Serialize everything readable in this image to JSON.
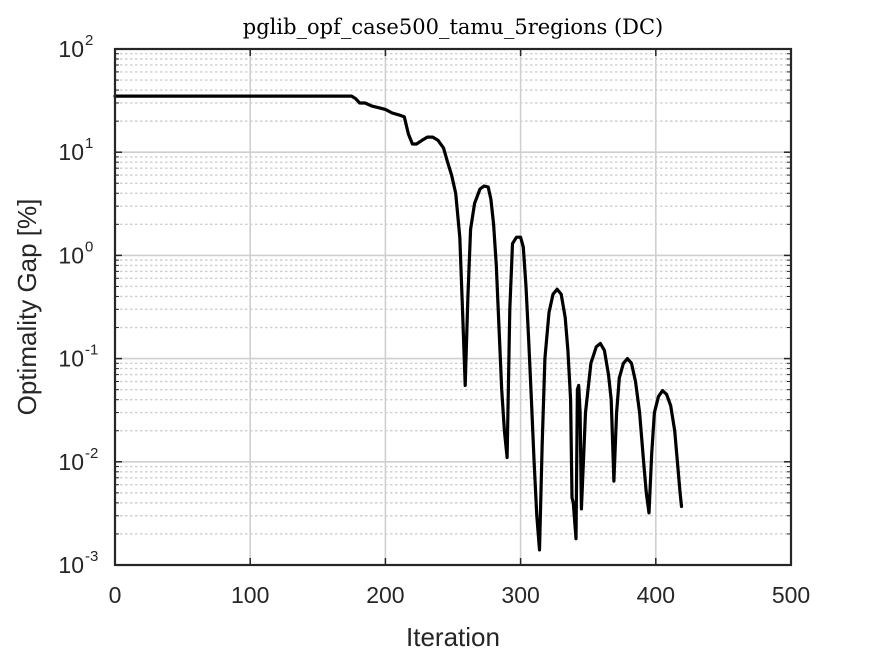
{
  "chart_data": {
    "type": "line",
    "title": "pglib_opf_case500_tamu_5regions (DC)",
    "xlabel": "Iteration",
    "ylabel": "Optimality Gap [%]",
    "xlim": [
      0,
      500
    ],
    "ylim": [
      0.001,
      100
    ],
    "y_scale": "log",
    "grid": true,
    "minor_grid": true,
    "x_ticks": [
      0,
      100,
      200,
      300,
      400,
      500
    ],
    "y_ticks": [
      {
        "value": 0.001,
        "base": "10",
        "exp": "-3"
      },
      {
        "value": 0.01,
        "base": "10",
        "exp": "-2"
      },
      {
        "value": 0.1,
        "base": "10",
        "exp": "-1"
      },
      {
        "value": 1,
        "base": "10",
        "exp": "0"
      },
      {
        "value": 10,
        "base": "10",
        "exp": "1"
      },
      {
        "value": 100,
        "base": "10",
        "exp": "2"
      }
    ],
    "line_color": "#000000",
    "grid_color": "#cfcfcf",
    "series": [
      {
        "x": [
          0,
          175,
          178,
          181,
          185,
          190,
          195,
          200,
          205,
          210,
          214,
          217,
          220,
          223,
          227,
          231,
          235,
          239,
          243,
          246,
          249,
          252,
          255,
          257,
          259,
          261,
          263,
          266,
          270,
          273,
          276,
          278,
          280,
          282,
          284,
          286,
          288,
          290,
          292,
          294,
          297,
          300,
          302,
          304,
          306,
          308,
          310,
          312,
          314,
          316,
          318,
          321,
          324,
          327,
          330,
          333,
          335,
          337,
          338,
          339,
          341,
          342,
          343,
          344,
          345,
          348,
          352,
          356,
          359,
          362,
          365,
          367,
          369,
          371,
          373,
          376,
          379,
          382,
          385,
          388,
          391,
          393,
          395,
          397,
          399,
          402,
          405,
          408,
          411,
          414,
          416,
          418,
          419
        ],
        "y": [
          35,
          35,
          33,
          30,
          30,
          28,
          27,
          26,
          24,
          23,
          22,
          15,
          12,
          12,
          13,
          14,
          14,
          13,
          11,
          8,
          6,
          4,
          1.5,
          0.3,
          0.055,
          0.4,
          1.8,
          3.2,
          4.4,
          4.7,
          4.6,
          3.5,
          2.0,
          0.8,
          0.2,
          0.05,
          0.02,
          0.011,
          0.3,
          1.3,
          1.5,
          1.5,
          1.2,
          0.5,
          0.15,
          0.04,
          0.01,
          0.003,
          0.0014,
          0.015,
          0.1,
          0.28,
          0.42,
          0.47,
          0.42,
          0.25,
          0.12,
          0.04,
          0.0045,
          0.004,
          0.0018,
          0.05,
          0.055,
          0.03,
          0.0035,
          0.03,
          0.09,
          0.13,
          0.14,
          0.12,
          0.07,
          0.04,
          0.0065,
          0.03,
          0.065,
          0.09,
          0.1,
          0.09,
          0.06,
          0.03,
          0.01,
          0.005,
          0.0032,
          0.012,
          0.03,
          0.043,
          0.049,
          0.045,
          0.035,
          0.02,
          0.01,
          0.005,
          0.0037
        ]
      }
    ]
  }
}
